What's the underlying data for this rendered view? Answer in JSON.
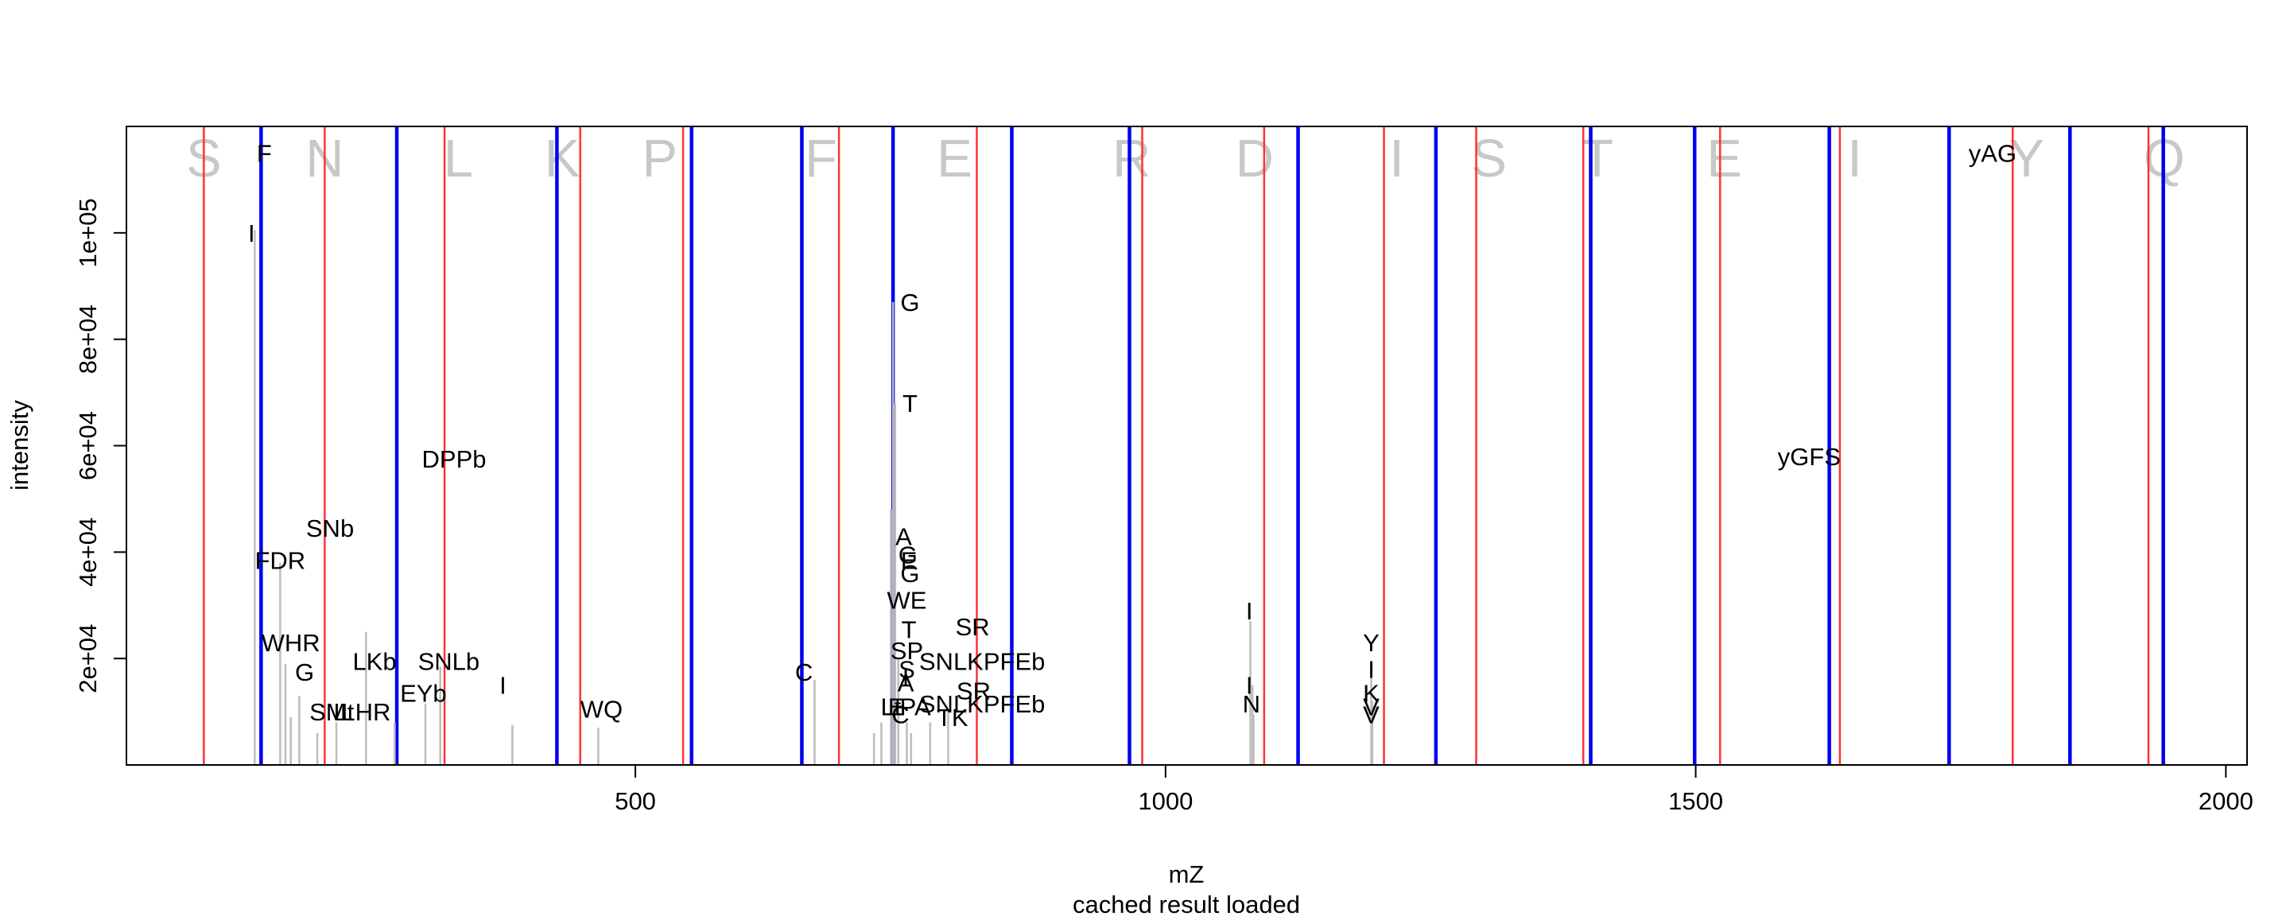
{
  "chart_data": {
    "type": "spectrum",
    "xlabel": "mZ",
    "ylabel": "intensity",
    "subtitle": "cached result loaded",
    "xlim": [
      20,
      2020
    ],
    "ylim": [
      0,
      120000
    ],
    "x_ticks": [
      {
        "value": 500,
        "label": "500"
      },
      {
        "value": 1000,
        "label": "1000"
      },
      {
        "value": 1500,
        "label": "1500"
      },
      {
        "value": 2000,
        "label": "2000"
      }
    ],
    "y_ticks": [
      {
        "value": 20000,
        "label": "2e+04"
      },
      {
        "value": 40000,
        "label": "4e+04"
      },
      {
        "value": 60000,
        "label": "6e+04"
      },
      {
        "value": 80000,
        "label": "8e+04"
      },
      {
        "value": 100000,
        "label": "1e+05"
      }
    ],
    "colors": {
      "b_ions": "#ff3333",
      "y_ions": "#0000ee",
      "peaks": "#bdbdbd",
      "sequence": "#c8c8c8"
    },
    "sequence_letters": [
      {
        "letter": "S",
        "x": 93
      },
      {
        "letter": "N",
        "x": 207
      },
      {
        "letter": "L",
        "x": 333
      },
      {
        "letter": "K",
        "x": 431
      },
      {
        "letter": "P",
        "x": 523
      },
      {
        "letter": "F",
        "x": 675
      },
      {
        "letter": "E",
        "x": 801
      },
      {
        "letter": "R",
        "x": 968
      },
      {
        "letter": "D",
        "x": 1084
      },
      {
        "letter": "I",
        "x": 1218
      },
      {
        "letter": "S",
        "x": 1305
      },
      {
        "letter": "T",
        "x": 1407
      },
      {
        "letter": "E",
        "x": 1527
      },
      {
        "letter": "I",
        "x": 1650
      },
      {
        "letter": "Y",
        "x": 1812
      },
      {
        "letter": "Q",
        "x": 1942
      }
    ],
    "b_ion_lines": [
      93,
      207,
      320,
      448,
      545,
      692,
      822,
      978,
      1093,
      1206,
      1293,
      1394,
      1523,
      1636,
      1799,
      1927
    ],
    "y_ion_lines": [
      147,
      275,
      426,
      553,
      657,
      743,
      855,
      966,
      1125,
      1255,
      1401,
      1499,
      1626,
      1739,
      1853,
      1941
    ],
    "peaks": [
      {
        "mz": 141,
        "intensity": 100500
      },
      {
        "mz": 165,
        "intensity": 38000
      },
      {
        "mz": 170,
        "intensity": 19000
      },
      {
        "mz": 175,
        "intensity": 9000
      },
      {
        "mz": 183,
        "intensity": 13000
      },
      {
        "mz": 200,
        "intensity": 6000
      },
      {
        "mz": 218,
        "intensity": 8000
      },
      {
        "mz": 246,
        "intensity": 25000
      },
      {
        "mz": 273,
        "intensity": 8000
      },
      {
        "mz": 302,
        "intensity": 11500
      },
      {
        "mz": 316,
        "intensity": 18500
      },
      {
        "mz": 384,
        "intensity": 7500
      },
      {
        "mz": 465,
        "intensity": 7000
      },
      {
        "mz": 669,
        "intensity": 16000
      },
      {
        "mz": 725,
        "intensity": 6000
      },
      {
        "mz": 732,
        "intensity": 8000
      },
      {
        "mz": 741,
        "intensity": 48000
      },
      {
        "mz": 743,
        "intensity": 87000
      },
      {
        "mz": 745,
        "intensity": 68000
      },
      {
        "mz": 748,
        "intensity": 20000
      },
      {
        "mz": 756,
        "intensity": 8000
      },
      {
        "mz": 760,
        "intensity": 6000
      },
      {
        "mz": 778,
        "intensity": 8000
      },
      {
        "mz": 795,
        "intensity": 10000
      },
      {
        "mz": 1080,
        "intensity": 27000
      },
      {
        "mz": 1082,
        "intensity": 15000
      },
      {
        "mz": 1083,
        "intensity": 9500
      },
      {
        "mz": 1194,
        "intensity": 18000
      },
      {
        "mz": 1195,
        "intensity": 12000
      }
    ],
    "peak_labels": [
      {
        "text": "F",
        "x": 150,
        "y": 115000
      },
      {
        "text": "I",
        "x": 138,
        "y": 100000
      },
      {
        "text": "SNb",
        "x": 212,
        "y": 44500
      },
      {
        "text": "FDR",
        "x": 165,
        "y": 38500
      },
      {
        "text": "LKb",
        "x": 254,
        "y": 19500,
        "yalt": 19500
      },
      {
        "text": "WHR",
        "x": 175,
        "y": 23000
      },
      {
        "text": "G",
        "x": 188,
        "y": 17500
      },
      {
        "text": "SNLb",
        "x": 324,
        "y": 19500
      },
      {
        "text": "DPPb",
        "x": 329,
        "y": 57500
      },
      {
        "text": "EYb",
        "x": 300,
        "y": 13500
      },
      {
        "text": "SM",
        "x": 210,
        "y": 10000
      },
      {
        "text": "Lt",
        "x": 225,
        "y": 10000
      },
      {
        "text": "LHR",
        "x": 246,
        "y": 10000
      },
      {
        "text": "I",
        "x": 375,
        "y": 15000
      },
      {
        "text": "WQ",
        "x": 468,
        "y": 10500
      },
      {
        "text": "C",
        "x": 659,
        "y": 17500
      },
      {
        "text": "G",
        "x": 759,
        "y": 87000
      },
      {
        "text": "T",
        "x": 759,
        "y": 68000
      },
      {
        "text": "A",
        "x": 753,
        "y": 43000
      },
      {
        "text": "G",
        "x": 757,
        "y": 39500
      },
      {
        "text": "E",
        "x": 758,
        "y": 38500
      },
      {
        "text": "G",
        "x": 759,
        "y": 36000
      },
      {
        "text": "WE",
        "x": 756,
        "y": 31000
      },
      {
        "text": "SR",
        "x": 818,
        "y": 26000
      },
      {
        "text": "T",
        "x": 758,
        "y": 25500
      },
      {
        "text": "SP",
        "x": 756,
        "y": 21500
      },
      {
        "text": "SNLKPFEb",
        "x": 827,
        "y": 19500
      },
      {
        "text": "S",
        "x": 756,
        "y": 18000
      },
      {
        "text": "I",
        "x": 755,
        "y": 16500
      },
      {
        "text": "A",
        "x": 755,
        "y": 15500
      },
      {
        "text": "SR",
        "x": 819,
        "y": 14000
      },
      {
        "text": "SNLKPFEb",
        "x": 827,
        "y": 11500
      },
      {
        "text": "Lt",
        "x": 741,
        "y": 11000
      },
      {
        "text": "E",
        "x": 746,
        "y": 11000
      },
      {
        "text": "PA",
        "x": 764,
        "y": 11000
      },
      {
        "text": "C",
        "x": 750,
        "y": 9500
      },
      {
        "text": "TK",
        "x": 799,
        "y": 9000
      },
      {
        "text": "I",
        "x": 1079,
        "y": 29000
      },
      {
        "text": "I",
        "x": 1079,
        "y": 15000
      },
      {
        "text": "N",
        "x": 1081,
        "y": 11500
      },
      {
        "text": "Y",
        "x": 1194,
        "y": 23000
      },
      {
        "text": "I",
        "x": 1194,
        "y": 18000
      },
      {
        "text": "K",
        "x": 1194,
        "y": 13500
      },
      {
        "text": "V",
        "x": 1194,
        "y": 11000
      },
      {
        "text": "V",
        "x": 1194,
        "y": 9500
      },
      {
        "text": "yGFS",
        "x": 1607,
        "y": 58000
      },
      {
        "text": "yAG",
        "x": 1780,
        "y": 115000
      }
    ]
  }
}
